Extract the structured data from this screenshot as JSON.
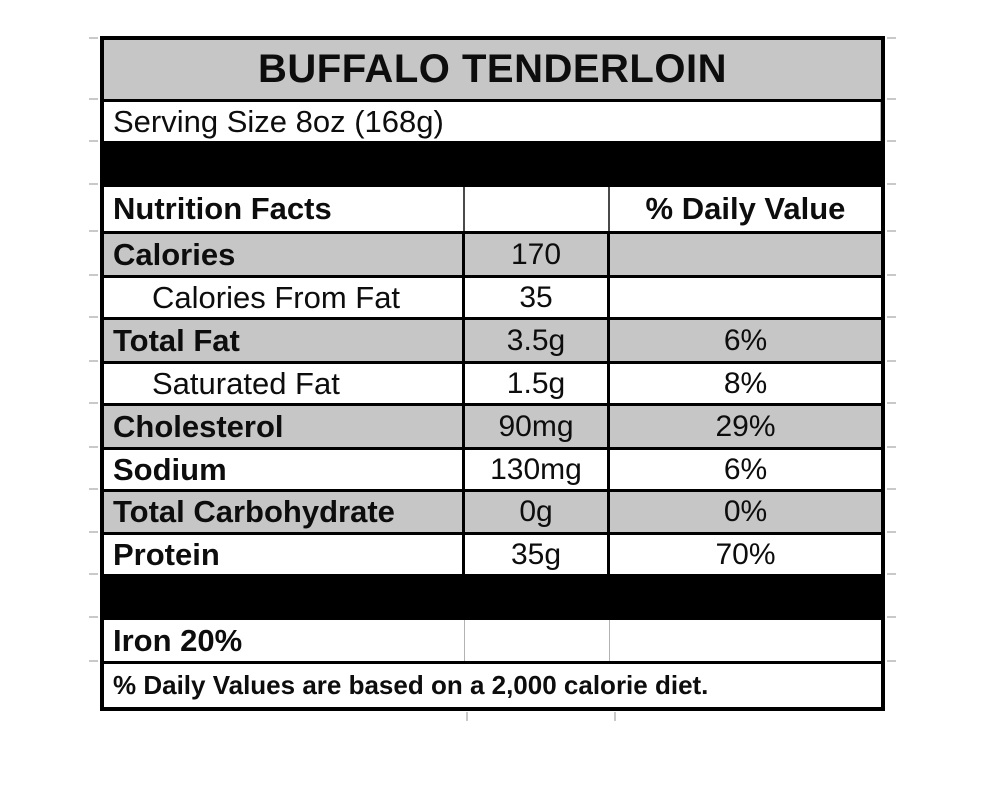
{
  "product": {
    "title": "BUFFALO TENDERLOIN",
    "serving_size": "Serving Size 8oz (168g)"
  },
  "table": {
    "header": {
      "label": "Nutrition Facts",
      "amount": "",
      "daily_value": "% Daily Value"
    },
    "rows": [
      {
        "label": "Calories",
        "amount": "170",
        "daily_value": ""
      },
      {
        "label": "Calories From Fat",
        "amount": "35",
        "daily_value": ""
      },
      {
        "label": "Total Fat",
        "amount": "3.5g",
        "daily_value": "6%"
      },
      {
        "label": "Saturated Fat",
        "amount": "1.5g",
        "daily_value": "8%"
      },
      {
        "label": "Cholesterol",
        "amount": "90mg",
        "daily_value": "29%"
      },
      {
        "label": "Sodium",
        "amount": "130mg",
        "daily_value": "6%"
      },
      {
        "label": "Total Carbohydrate",
        "amount": "0g",
        "daily_value": "0%"
      },
      {
        "label": "Protein",
        "amount": "35g",
        "daily_value": "70%"
      }
    ],
    "iron_row": "Iron 20%",
    "footnote": "% Daily Values are based on a 2,000 calorie diet."
  },
  "colors": {
    "band_gray": "#c6c6c6",
    "separator_black": "#000000",
    "border_black": "#000000"
  }
}
